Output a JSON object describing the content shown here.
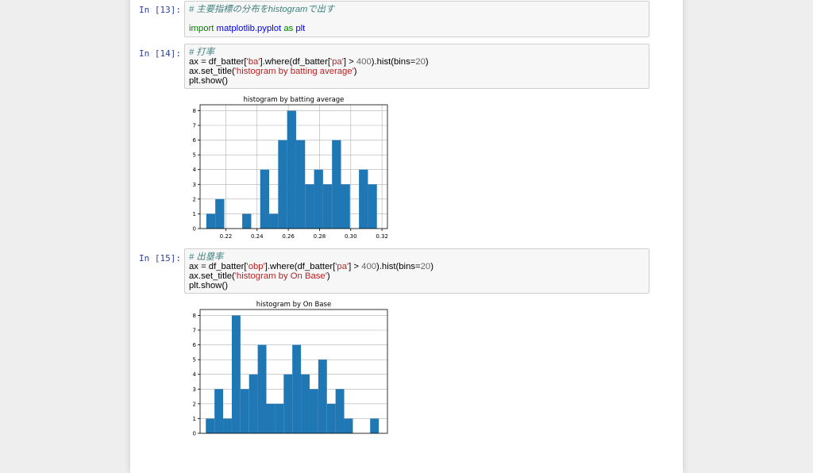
{
  "cells": [
    {
      "prompt": "In [13]:",
      "lines": [
        [
          {
            "t": "# 主要指標の分布をhistogramで出す",
            "c": "cm"
          }
        ],
        [],
        [
          {
            "t": "import",
            "c": "kw"
          },
          {
            "t": " "
          },
          {
            "t": "matplotlib.pyplot",
            "c": "nm"
          },
          {
            "t": " "
          },
          {
            "t": "as",
            "c": "kw"
          },
          {
            "t": " "
          },
          {
            "t": "plt",
            "c": "nm"
          }
        ]
      ]
    },
    {
      "prompt": "In [14]:",
      "lines": [
        [
          {
            "t": "# 打率",
            "c": "cm"
          }
        ],
        [
          {
            "t": "ax = df_batter["
          },
          {
            "t": "'ba'",
            "c": "st"
          },
          {
            "t": "].where(df_batter["
          },
          {
            "t": "'pa'",
            "c": "st"
          },
          {
            "t": "] > "
          },
          {
            "t": "400",
            "c": "nu"
          },
          {
            "t": ").hist(bins="
          },
          {
            "t": "20",
            "c": "nu"
          },
          {
            "t": ")"
          }
        ],
        [
          {
            "t": "ax.set_title("
          },
          {
            "t": "'histogram by batting average'",
            "c": "st"
          },
          {
            "t": ")"
          }
        ],
        [
          {
            "t": "plt.show()"
          }
        ]
      ]
    },
    {
      "prompt": "In [15]:",
      "lines": [
        [
          {
            "t": "# 出塁率",
            "c": "cm"
          }
        ],
        [
          {
            "t": "ax = df_batter["
          },
          {
            "t": "'obp'",
            "c": "st"
          },
          {
            "t": "].where(df_batter["
          },
          {
            "t": "'pa'",
            "c": "st"
          },
          {
            "t": "] > "
          },
          {
            "t": "400",
            "c": "nu"
          },
          {
            "t": ").hist(bins="
          },
          {
            "t": "20",
            "c": "nu"
          },
          {
            "t": ")"
          }
        ],
        [
          {
            "t": "ax.set_title("
          },
          {
            "t": "'histogram by On Base'",
            "c": "st"
          },
          {
            "t": ")"
          }
        ],
        [
          {
            "t": "plt.show()"
          }
        ]
      ]
    }
  ],
  "colors": {
    "prompt": "#303F9F",
    "bar": "#1f77b4",
    "grid": "#b0b0b0"
  },
  "chart_data": [
    {
      "type": "bar",
      "title": "histogram by batting average",
      "xlabel": "",
      "ylabel": "",
      "bin_edges": [
        0.2075,
        0.21325,
        0.219,
        0.22475,
        0.2305,
        0.23625,
        0.242,
        0.24775,
        0.2535,
        0.25925,
        0.265,
        0.27075,
        0.2765,
        0.28225,
        0.288,
        0.29375,
        0.2995,
        0.30525,
        0.311,
        0.31675,
        0.3225
      ],
      "values": [
        1,
        2,
        0,
        0,
        1,
        0,
        4,
        1,
        6,
        8,
        6,
        3,
        4,
        3,
        6,
        3,
        0,
        4,
        3,
        0
      ],
      "x_ticks": [
        "0.22",
        "0.24",
        "0.26",
        "0.28",
        "0.30",
        "0.32"
      ],
      "y_ticks": [
        "0",
        "1",
        "2",
        "3",
        "4",
        "5",
        "6",
        "7",
        "8"
      ],
      "xlim": [
        0.2035,
        0.3235
      ],
      "ylim": [
        0,
        8.4
      ],
      "grid": true
    },
    {
      "type": "bar",
      "title": "histogram by On Base",
      "xlabel": "",
      "ylabel": "",
      "bin_edges": [
        0.285,
        0.291,
        0.297,
        0.303,
        0.309,
        0.315,
        0.321,
        0.327,
        0.333,
        0.339,
        0.345,
        0.351,
        0.357,
        0.363,
        0.369,
        0.375,
        0.381,
        0.387,
        0.393,
        0.399,
        0.405
      ],
      "values": [
        1,
        3,
        1,
        8,
        3,
        4,
        6,
        2,
        2,
        4,
        6,
        4,
        3,
        5,
        2,
        3,
        1,
        0,
        0,
        1
      ],
      "x_ticks": [],
      "y_ticks": [
        "0",
        "1",
        "2",
        "3",
        "4",
        "5",
        "6",
        "7",
        "8"
      ],
      "xlim": [
        0.281,
        0.411
      ],
      "ylim": [
        0,
        8.4
      ],
      "grid": true
    }
  ]
}
